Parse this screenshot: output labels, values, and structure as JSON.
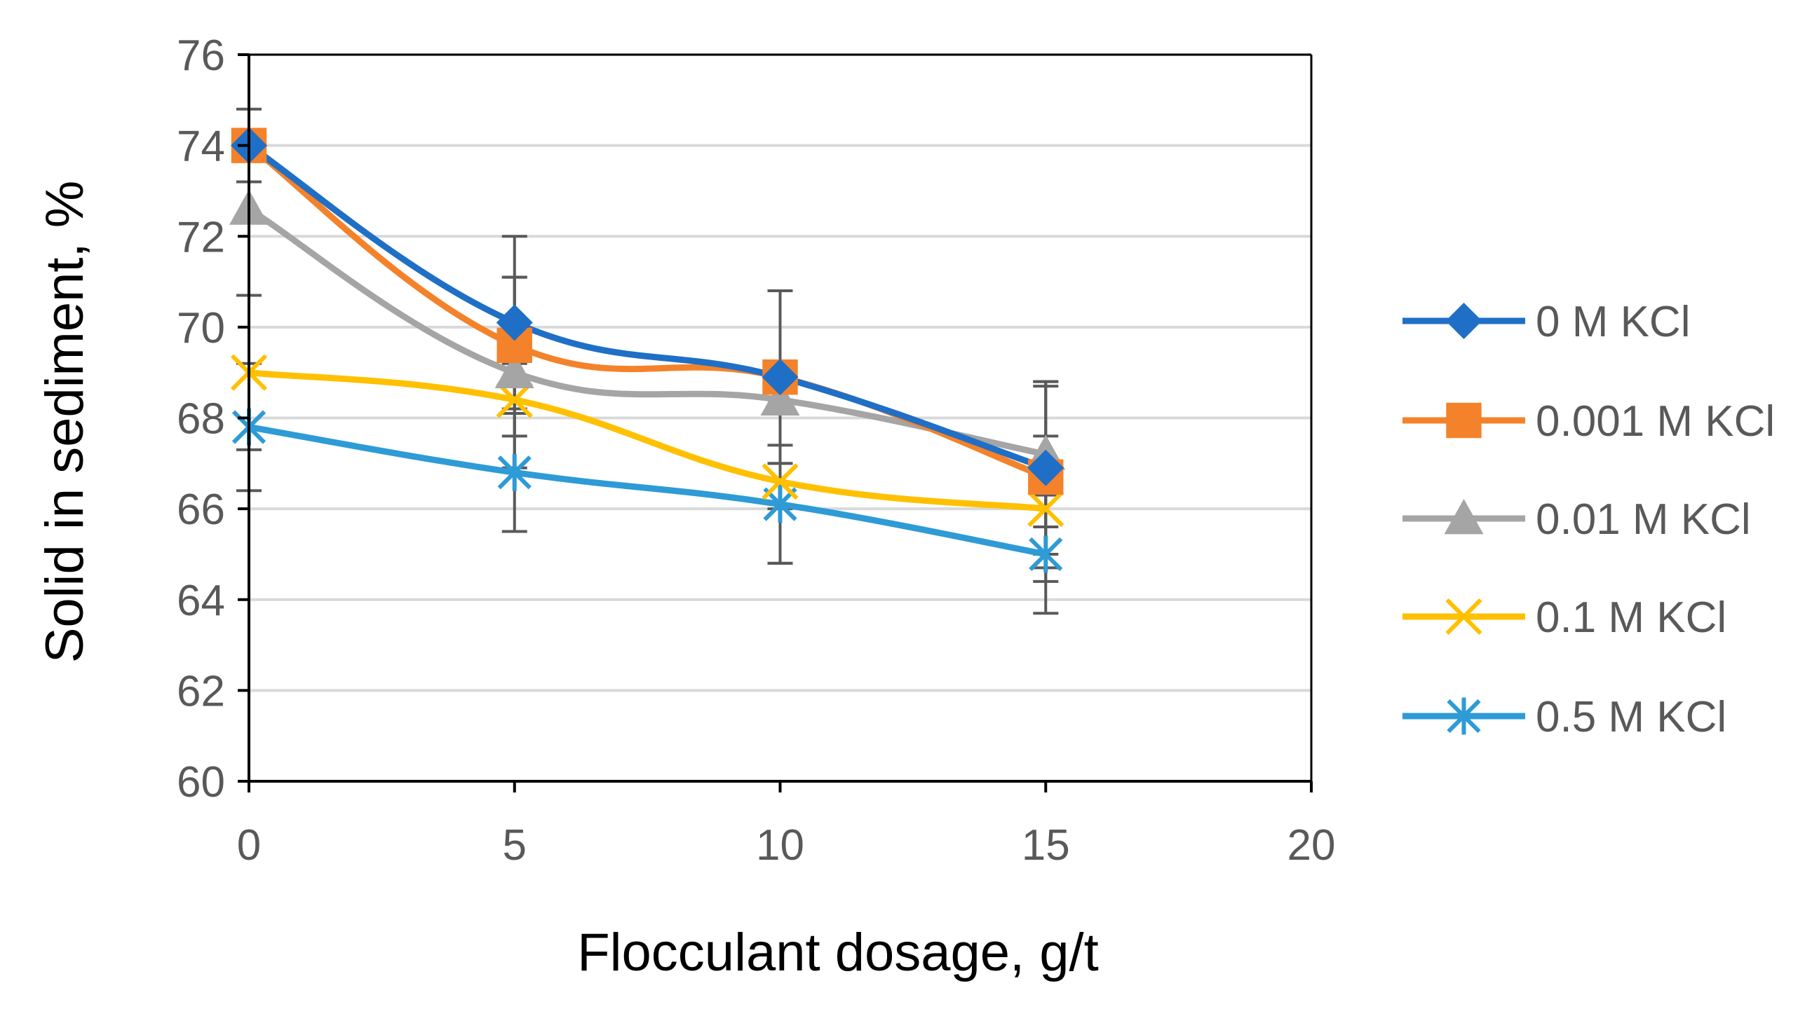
{
  "chart_data": {
    "type": "line",
    "title": "",
    "xlabel": "Flocculant dosage, g/t",
    "ylabel": "Solid in sediment, %",
    "xlim": [
      0,
      20
    ],
    "ylim": [
      60,
      76
    ],
    "xticks": [
      0,
      5,
      10,
      15,
      20
    ],
    "yticks": [
      60,
      62,
      64,
      66,
      68,
      70,
      72,
      74,
      76
    ],
    "grid": true,
    "legend_position": "right",
    "x": [
      0,
      5,
      10,
      15
    ],
    "series": [
      {
        "name": "0 M KCl",
        "color": "#1F6FC6",
        "marker": "diamond",
        "values": [
          74.0,
          70.1,
          68.9,
          66.9
        ],
        "errors": [
          0.8,
          1.9,
          1.9,
          1.9
        ]
      },
      {
        "name": "0.001 M KCl",
        "color": "#F4822A",
        "marker": "square",
        "values": [
          74.0,
          69.6,
          68.9,
          66.7
        ],
        "errors": [
          0.0,
          1.5,
          1.9,
          2.0
        ]
      },
      {
        "name": "0.01 M KCl",
        "color": "#A5A5A5",
        "marker": "triangle",
        "values": [
          72.6,
          69.0,
          68.4,
          67.2
        ],
        "errors": [
          0.0,
          2.1,
          2.4,
          1.6
        ]
      },
      {
        "name": "0.1 M KCl",
        "color": "#FFC000",
        "marker": "x",
        "values": [
          69.0,
          68.4,
          66.6,
          66.0
        ],
        "errors": [
          1.7,
          0.8,
          1.8,
          1.6
        ]
      },
      {
        "name": "0.5 M KCl",
        "color": "#2E9BD6",
        "marker": "star",
        "values": [
          67.8,
          66.8,
          66.1,
          65.0
        ],
        "errors": [
          1.4,
          1.3,
          1.3,
          1.3
        ]
      }
    ]
  }
}
